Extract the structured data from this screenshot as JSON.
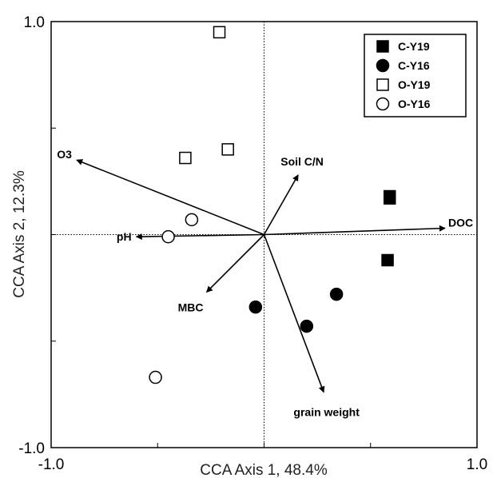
{
  "chart_data": {
    "type": "scatter",
    "title": "",
    "xlabel": "CCA Axis 1, 48.4%",
    "ylabel": "CCA Axis 2, 12.3%",
    "xlim": [
      -1.0,
      1.0
    ],
    "ylim": [
      -1.0,
      1.0
    ],
    "xticks": [
      {
        "value": -1.0,
        "label": "-1.0"
      },
      {
        "value": 1.0,
        "label": "1.0"
      }
    ],
    "yticks": [
      {
        "value": 1.0,
        "label": "1.0"
      },
      {
        "value": -1.0,
        "label": "-1.0"
      }
    ],
    "grid": false,
    "legend": "top-right",
    "series": [
      {
        "name": "C-Y19",
        "marker": "square-filled",
        "points": [
          [
            0.59,
            0.18
          ],
          [
            0.59,
            0.17
          ],
          [
            0.58,
            -0.12
          ]
        ]
      },
      {
        "name": "C-Y16",
        "marker": "circle-filled",
        "points": [
          [
            -0.04,
            -0.34
          ],
          [
            0.2,
            -0.43
          ],
          [
            0.34,
            -0.28
          ]
        ]
      },
      {
        "name": "O-Y19",
        "marker": "square-open",
        "points": [
          [
            -0.21,
            0.95
          ],
          [
            -0.37,
            0.36
          ],
          [
            -0.17,
            0.4
          ]
        ]
      },
      {
        "name": "O-Y16",
        "marker": "circle-open",
        "points": [
          [
            -0.34,
            0.07
          ],
          [
            -0.45,
            -0.01
          ],
          [
            -0.51,
            -0.67
          ]
        ]
      }
    ],
    "vectors": [
      {
        "name": "O3",
        "x": -0.88,
        "y": 0.35
      },
      {
        "name": "Soil C/N",
        "x": 0.16,
        "y": 0.28
      },
      {
        "name": "DOC",
        "x": 0.85,
        "y": 0.03
      },
      {
        "name": "pH",
        "x": -0.6,
        "y": -0.01
      },
      {
        "name": "MBC",
        "x": -0.27,
        "y": -0.27
      },
      {
        "name": "grain weight",
        "x": 0.28,
        "y": -0.74
      }
    ]
  }
}
